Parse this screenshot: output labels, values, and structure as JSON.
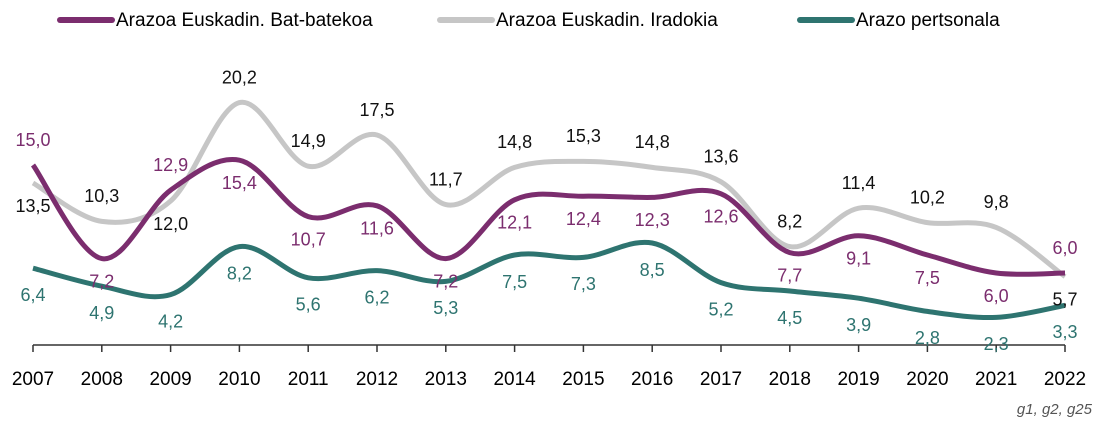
{
  "chart_data": {
    "type": "line",
    "categories": [
      "2007",
      "2008",
      "2009",
      "2010",
      "2011",
      "2012",
      "2013",
      "2014",
      "2015",
      "2016",
      "2017",
      "2018",
      "2019",
      "2020",
      "2021",
      "2022"
    ],
    "series": [
      {
        "name": "Arazoa Euskadin. Bat-batekoa",
        "color": "#7b2d6e",
        "label_color": "#7b2d6e",
        "values": [
          15.0,
          7.2,
          12.9,
          15.4,
          10.7,
          11.6,
          7.2,
          12.1,
          12.4,
          12.3,
          12.6,
          7.7,
          9.1,
          7.5,
          6.0,
          6.0
        ],
        "value_labels": [
          "15,0",
          "7,2",
          "12,9",
          "15,4",
          "10,7",
          "11,6",
          "7,2",
          "12,1",
          "12,4",
          "12,3",
          "12,6",
          "7,7",
          "9,1",
          "7,5",
          "6,0",
          "6,0"
        ]
      },
      {
        "name": "Arazoa Euskadin. Iradokia",
        "color": "#c6c6c6",
        "label_color": "#111111",
        "values": [
          13.5,
          10.3,
          12.0,
          20.2,
          14.9,
          17.5,
          11.7,
          14.8,
          15.3,
          14.8,
          13.6,
          8.2,
          11.4,
          10.2,
          9.8,
          5.7
        ],
        "value_labels": [
          "13,5",
          "10,3",
          "12,0",
          "20,2",
          "14,9",
          "17,5",
          "11,7",
          "14,8",
          "15,3",
          "14,8",
          "13,6",
          "8,2",
          "11,4",
          "10,2",
          "9,8",
          "5,7"
        ]
      },
      {
        "name": "Arazo pertsonala",
        "color": "#2e7470",
        "label_color": "#2e7470",
        "values": [
          6.4,
          4.9,
          4.2,
          8.2,
          5.6,
          6.2,
          5.3,
          7.5,
          7.3,
          8.5,
          5.2,
          4.5,
          3.9,
          2.8,
          2.3,
          3.3
        ],
        "value_labels": [
          "6,4",
          "4,9",
          "4,2",
          "8,2",
          "5,6",
          "6,2",
          "5,3",
          "7,5",
          "7,3",
          "8,5",
          "5,2",
          "4,5",
          "3,9",
          "2,8",
          "2,3",
          "3,3"
        ]
      }
    ],
    "ylim": [
      0,
      25
    ],
    "source": "g1, g2, g25"
  }
}
